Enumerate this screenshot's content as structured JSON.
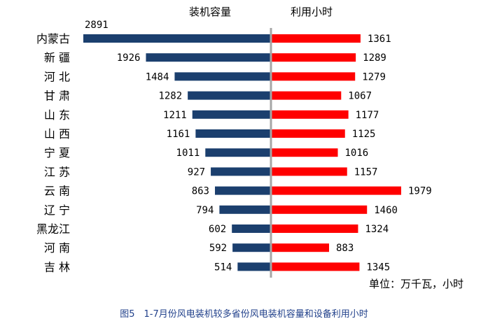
{
  "caption": "图5　1-7月份风电装机较多省份风电装机容量和设备利用小时",
  "chart_data": {
    "type": "bar",
    "orientation": "horizontal-diverging",
    "unit_note": "单位：万千瓦，小时",
    "categories": [
      "内蒙古",
      "新 疆",
      "河 北",
      "甘 肃",
      "山 东",
      "山 西",
      "宁 夏",
      "江 苏",
      "云 南",
      "辽 宁",
      "黑龙江",
      "河 南",
      "吉 林"
    ],
    "series": [
      {
        "name": "装机容量",
        "side": "left",
        "color": "#1b3f6e",
        "values": [
          2891,
          1926,
          1484,
          1282,
          1211,
          1161,
          1011,
          927,
          863,
          794,
          602,
          592,
          514
        ]
      },
      {
        "name": "利用小时",
        "side": "right",
        "color": "#ff0000",
        "values": [
          1361,
          1289,
          1279,
          1067,
          1177,
          1125,
          1016,
          1157,
          1979,
          1460,
          1324,
          883,
          1345
        ]
      }
    ],
    "left_max": 2891,
    "right_max": 1979,
    "axis_color": "#a6a6a6",
    "grid": false,
    "legend": "series names as headers above each side"
  }
}
